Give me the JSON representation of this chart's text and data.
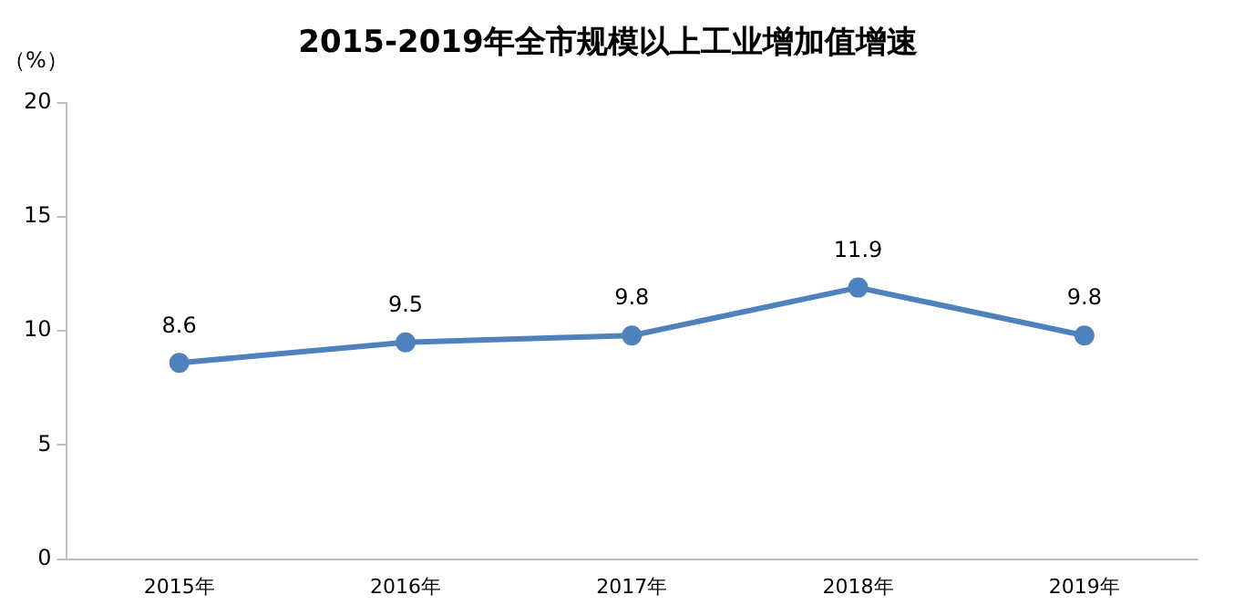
{
  "chart_data": {
    "type": "line",
    "title": "2015-2019年全市规模以上工业增加值增速",
    "ylabel": "（%）",
    "categories": [
      "2015年",
      "2016年",
      "2017年",
      "2018年",
      "2019年"
    ],
    "series": [
      {
        "color": "#4f81bd",
        "values": [
          8.6,
          9.5,
          9.8,
          11.9,
          9.8
        ]
      }
    ],
    "ylim": [
      0,
      20
    ],
    "yticks": [
      0,
      5,
      10,
      15,
      20
    ],
    "grid": false,
    "legend": false,
    "marker": "circle",
    "line_style": "solid",
    "data_labels": true
  }
}
